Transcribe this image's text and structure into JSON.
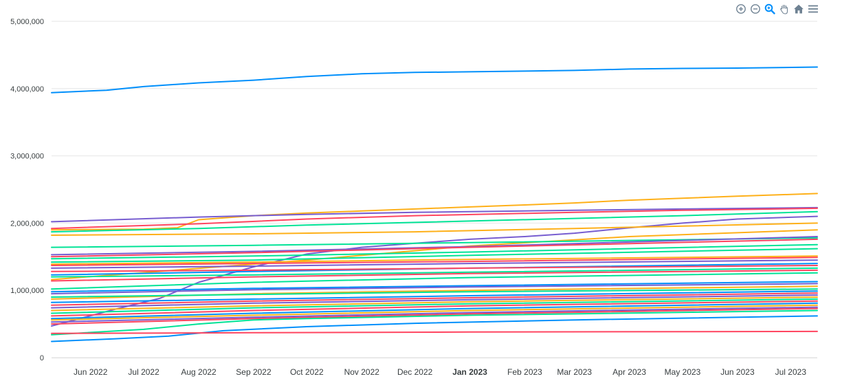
{
  "toolbar": {
    "icons": [
      "zoom-in-icon",
      "zoom-out-icon",
      "selection-zoom-icon",
      "pan-icon",
      "home-icon",
      "menu-icon"
    ]
  },
  "chart_data": {
    "type": "line",
    "title": "",
    "xlabel": "",
    "ylabel": "",
    "ylim": [
      0,
      5000000
    ],
    "xlim": [
      "2022-05-10",
      "2023-07-16"
    ],
    "grid": true,
    "legend": "none",
    "y_ticks": [
      "0",
      "1,000,000",
      "2,000,000",
      "3,000,000",
      "4,000,000",
      "5,000,000"
    ],
    "y_tick_values": [
      0,
      1000000,
      2000000,
      3000000,
      4000000,
      5000000
    ],
    "x_ticks": [
      {
        "label": "Jun 2022",
        "date": "2022-06-01"
      },
      {
        "label": "Jul 2022",
        "date": "2022-07-01"
      },
      {
        "label": "Aug 2022",
        "date": "2022-08-01"
      },
      {
        "label": "Sep 2022",
        "date": "2022-09-01"
      },
      {
        "label": "Oct 2022",
        "date": "2022-10-01"
      },
      {
        "label": "Nov 2022",
        "date": "2022-11-01"
      },
      {
        "label": "Dec 2022",
        "date": "2022-12-01"
      },
      {
        "label": "Jan 2023",
        "date": "2023-01-01",
        "bold": true
      },
      {
        "label": "Feb 2023",
        "date": "2023-02-01"
      },
      {
        "label": "Mar 2023",
        "date": "2023-03-01"
      },
      {
        "label": "Apr 2023",
        "date": "2023-04-01"
      },
      {
        "label": "May 2023",
        "date": "2023-05-01"
      },
      {
        "label": "Jun 2023",
        "date": "2023-06-01"
      },
      {
        "label": "Jul 2023",
        "date": "2023-07-01"
      }
    ],
    "colors": [
      "#008FFB",
      "#00E396",
      "#FEB019",
      "#FF4560",
      "#775DD0"
    ],
    "series": [
      {
        "color": "#008FFB",
        "points": [
          [
            "2022-05-10",
            3940000
          ],
          [
            "2022-06-10",
            3975000
          ],
          [
            "2022-07-01",
            4030000
          ],
          [
            "2022-08-01",
            4085000
          ],
          [
            "2022-09-01",
            4125000
          ],
          [
            "2022-10-01",
            4180000
          ],
          [
            "2022-11-01",
            4220000
          ],
          [
            "2022-12-01",
            4240000
          ],
          [
            "2023-01-01",
            4250000
          ],
          [
            "2023-02-01",
            4260000
          ],
          [
            "2023-03-01",
            4270000
          ],
          [
            "2023-04-01",
            4290000
          ],
          [
            "2023-05-01",
            4300000
          ],
          [
            "2023-06-01",
            4305000
          ],
          [
            "2023-07-16",
            4320000
          ]
        ]
      },
      {
        "color": "#FEB019",
        "points": [
          [
            "2022-05-10",
            1900000
          ],
          [
            "2022-07-01",
            1910000
          ],
          [
            "2022-07-20",
            1930000
          ],
          [
            "2022-08-01",
            2050000
          ],
          [
            "2022-09-01",
            2110000
          ],
          [
            "2022-10-01",
            2150000
          ],
          [
            "2022-11-01",
            2180000
          ],
          [
            "2022-12-01",
            2210000
          ],
          [
            "2023-01-01",
            2240000
          ],
          [
            "2023-02-01",
            2270000
          ],
          [
            "2023-03-01",
            2300000
          ],
          [
            "2023-04-01",
            2340000
          ],
          [
            "2023-05-01",
            2370000
          ],
          [
            "2023-06-01",
            2400000
          ],
          [
            "2023-07-16",
            2440000
          ]
        ]
      },
      {
        "color": "#775DD0",
        "points": [
          [
            "2022-05-10",
            2020000
          ],
          [
            "2022-08-01",
            2090000
          ],
          [
            "2022-10-01",
            2130000
          ],
          [
            "2022-12-01",
            2160000
          ],
          [
            "2023-03-01",
            2190000
          ],
          [
            "2023-05-01",
            2210000
          ],
          [
            "2023-07-16",
            2230000
          ]
        ]
      },
      {
        "color": "#FF4560",
        "points": [
          [
            "2022-05-10",
            1920000
          ],
          [
            "2022-08-01",
            1990000
          ],
          [
            "2022-10-01",
            2060000
          ],
          [
            "2022-12-01",
            2110000
          ],
          [
            "2023-03-01",
            2160000
          ],
          [
            "2023-05-01",
            2190000
          ],
          [
            "2023-07-16",
            2220000
          ]
        ]
      },
      {
        "color": "#00E396",
        "points": [
          [
            "2022-05-10",
            1870000
          ],
          [
            "2022-08-01",
            1920000
          ],
          [
            "2022-10-01",
            1970000
          ],
          [
            "2022-12-01",
            2010000
          ],
          [
            "2023-03-01",
            2070000
          ],
          [
            "2023-05-01",
            2110000
          ],
          [
            "2023-07-16",
            2170000
          ]
        ]
      },
      {
        "color": "#775DD0",
        "points": [
          [
            "2022-05-10",
            470000
          ],
          [
            "2022-06-15",
            720000
          ],
          [
            "2022-07-10",
            880000
          ],
          [
            "2022-08-01",
            1120000
          ],
          [
            "2022-09-01",
            1350000
          ],
          [
            "2022-10-01",
            1540000
          ],
          [
            "2022-11-01",
            1640000
          ],
          [
            "2022-12-01",
            1700000
          ],
          [
            "2023-01-01",
            1760000
          ],
          [
            "2023-02-01",
            1800000
          ],
          [
            "2023-03-01",
            1850000
          ],
          [
            "2023-04-01",
            1930000
          ],
          [
            "2023-05-01",
            2000000
          ],
          [
            "2023-06-01",
            2060000
          ],
          [
            "2023-07-16",
            2100000
          ]
        ]
      },
      {
        "color": "#FEB019",
        "points": [
          [
            "2022-05-10",
            1820000
          ],
          [
            "2022-09-01",
            1840000
          ],
          [
            "2022-12-01",
            1870000
          ],
          [
            "2023-03-01",
            1920000
          ],
          [
            "2023-07-16",
            2000000
          ]
        ]
      },
      {
        "color": "#FEB019",
        "points": [
          [
            "2022-05-10",
            1160000
          ],
          [
            "2022-10-01",
            1450000
          ],
          [
            "2023-01-01",
            1660000
          ],
          [
            "2023-04-01",
            1800000
          ],
          [
            "2023-07-16",
            1900000
          ]
        ]
      },
      {
        "color": "#00E396",
        "points": [
          [
            "2022-05-10",
            1640000
          ],
          [
            "2022-09-01",
            1670000
          ],
          [
            "2023-01-01",
            1710000
          ],
          [
            "2023-07-16",
            1780000
          ]
        ]
      },
      {
        "color": "#775DD0",
        "points": [
          [
            "2022-05-10",
            1530000
          ],
          [
            "2022-09-01",
            1580000
          ],
          [
            "2023-01-01",
            1650000
          ],
          [
            "2023-07-16",
            1800000
          ]
        ]
      },
      {
        "color": "#FF4560",
        "points": [
          [
            "2022-05-10",
            1500000
          ],
          [
            "2022-09-01",
            1560000
          ],
          [
            "2023-01-01",
            1640000
          ],
          [
            "2023-07-16",
            1760000
          ]
        ]
      },
      {
        "color": "#00E396",
        "points": [
          [
            "2022-05-10",
            1470000
          ],
          [
            "2022-09-01",
            1510000
          ],
          [
            "2023-01-01",
            1570000
          ],
          [
            "2023-07-16",
            1680000
          ]
        ]
      },
      {
        "color": "#00E396",
        "points": [
          [
            "2022-05-10",
            1420000
          ],
          [
            "2022-09-01",
            1450000
          ],
          [
            "2023-01-01",
            1520000
          ],
          [
            "2023-07-16",
            1620000
          ]
        ]
      },
      {
        "color": "#FEB019",
        "points": [
          [
            "2022-05-10",
            1390000
          ],
          [
            "2022-09-01",
            1420000
          ],
          [
            "2023-01-01",
            1460000
          ],
          [
            "2023-07-16",
            1510000
          ]
        ]
      },
      {
        "color": "#FF4560",
        "points": [
          [
            "2022-05-10",
            1370000
          ],
          [
            "2022-09-01",
            1400000
          ],
          [
            "2023-01-01",
            1430000
          ],
          [
            "2023-07-16",
            1490000
          ]
        ]
      },
      {
        "color": "#775DD0",
        "points": [
          [
            "2022-05-10",
            1330000
          ],
          [
            "2022-09-01",
            1360000
          ],
          [
            "2023-01-01",
            1400000
          ],
          [
            "2023-07-16",
            1450000
          ]
        ]
      },
      {
        "color": "#008FFB",
        "points": [
          [
            "2022-05-10",
            1230000
          ],
          [
            "2022-09-01",
            1280000
          ],
          [
            "2023-01-01",
            1330000
          ],
          [
            "2023-07-16",
            1400000
          ]
        ]
      },
      {
        "color": "#FF4560",
        "points": [
          [
            "2022-05-10",
            1280000
          ],
          [
            "2022-09-01",
            1300000
          ],
          [
            "2023-01-01",
            1330000
          ],
          [
            "2023-07-16",
            1370000
          ]
        ]
      },
      {
        "color": "#00E396",
        "points": [
          [
            "2022-05-10",
            1200000
          ],
          [
            "2022-09-01",
            1230000
          ],
          [
            "2023-01-01",
            1270000
          ],
          [
            "2023-07-16",
            1330000
          ]
        ]
      },
      {
        "color": "#FF4560",
        "points": [
          [
            "2022-05-10",
            1140000
          ],
          [
            "2022-09-01",
            1200000
          ],
          [
            "2023-01-01",
            1250000
          ],
          [
            "2023-07-16",
            1300000
          ]
        ]
      },
      {
        "color": "#00E396",
        "points": [
          [
            "2022-05-10",
            1020000
          ],
          [
            "2022-09-01",
            1120000
          ],
          [
            "2023-01-01",
            1190000
          ],
          [
            "2023-07-16",
            1260000
          ]
        ]
      },
      {
        "color": "#008FFB",
        "points": [
          [
            "2022-05-10",
            980000
          ],
          [
            "2022-09-01",
            1030000
          ],
          [
            "2023-01-01",
            1070000
          ],
          [
            "2023-07-16",
            1130000
          ]
        ]
      },
      {
        "color": "#775DD0",
        "points": [
          [
            "2022-05-10",
            950000
          ],
          [
            "2022-09-01",
            1010000
          ],
          [
            "2023-01-01",
            1050000
          ],
          [
            "2023-07-16",
            1100000
          ]
        ]
      },
      {
        "color": "#FEB019",
        "points": [
          [
            "2022-05-10",
            870000
          ],
          [
            "2022-09-01",
            950000
          ],
          [
            "2023-01-01",
            1000000
          ],
          [
            "2023-07-16",
            1060000
          ]
        ]
      },
      {
        "color": "#00E396",
        "points": [
          [
            "2022-05-10",
            900000
          ],
          [
            "2022-09-01",
            940000
          ],
          [
            "2023-01-01",
            980000
          ],
          [
            "2023-07-16",
            1020000
          ]
        ]
      },
      {
        "color": "#008FFB",
        "points": [
          [
            "2022-05-10",
            820000
          ],
          [
            "2022-09-01",
            870000
          ],
          [
            "2023-01-01",
            920000
          ],
          [
            "2023-07-16",
            990000
          ]
        ]
      },
      {
        "color": "#FF4560",
        "points": [
          [
            "2022-05-10",
            780000
          ],
          [
            "2022-09-01",
            840000
          ],
          [
            "2023-01-01",
            890000
          ],
          [
            "2023-07-16",
            960000
          ]
        ]
      },
      {
        "color": "#775DD0",
        "points": [
          [
            "2022-05-10",
            740000
          ],
          [
            "2022-09-01",
            810000
          ],
          [
            "2023-01-01",
            860000
          ],
          [
            "2023-07-16",
            930000
          ]
        ]
      },
      {
        "color": "#FEB019",
        "points": [
          [
            "2022-05-10",
            700000
          ],
          [
            "2022-09-01",
            770000
          ],
          [
            "2023-01-01",
            830000
          ],
          [
            "2023-07-16",
            900000
          ]
        ]
      },
      {
        "color": "#00E396",
        "points": [
          [
            "2022-05-10",
            660000
          ],
          [
            "2022-09-01",
            740000
          ],
          [
            "2023-01-01",
            800000
          ],
          [
            "2023-07-16",
            870000
          ]
        ]
      },
      {
        "color": "#FF4560",
        "points": [
          [
            "2022-05-10",
            620000
          ],
          [
            "2022-09-01",
            700000
          ],
          [
            "2023-01-01",
            770000
          ],
          [
            "2023-07-16",
            840000
          ]
        ]
      },
      {
        "color": "#008FFB",
        "points": [
          [
            "2022-05-10",
            580000
          ],
          [
            "2022-09-01",
            660000
          ],
          [
            "2023-01-01",
            730000
          ],
          [
            "2023-07-16",
            810000
          ]
        ]
      },
      {
        "color": "#FEB019",
        "points": [
          [
            "2022-05-10",
            560000
          ],
          [
            "2022-09-01",
            630000
          ],
          [
            "2023-01-01",
            700000
          ],
          [
            "2023-07-16",
            780000
          ]
        ]
      },
      {
        "color": "#775DD0",
        "points": [
          [
            "2022-05-10",
            530000
          ],
          [
            "2022-09-01",
            600000
          ],
          [
            "2023-01-01",
            670000
          ],
          [
            "2023-07-16",
            750000
          ]
        ]
      },
      {
        "color": "#FF4560",
        "points": [
          [
            "2022-05-10",
            500000
          ],
          [
            "2022-09-01",
            580000
          ],
          [
            "2023-01-01",
            650000
          ],
          [
            "2023-07-16",
            730000
          ]
        ]
      },
      {
        "color": "#00E396",
        "points": [
          [
            "2022-05-10",
            340000
          ],
          [
            "2022-07-01",
            420000
          ],
          [
            "2022-08-01",
            500000
          ],
          [
            "2022-09-01",
            560000
          ],
          [
            "2022-10-01",
            580000
          ],
          [
            "2023-01-01",
            630000
          ],
          [
            "2023-07-16",
            700000
          ]
        ]
      },
      {
        "color": "#008FFB",
        "points": [
          [
            "2022-05-10",
            240000
          ],
          [
            "2022-06-15",
            280000
          ],
          [
            "2022-07-15",
            320000
          ],
          [
            "2022-08-15",
            400000
          ],
          [
            "2022-10-01",
            460000
          ],
          [
            "2022-12-01",
            510000
          ],
          [
            "2023-03-01",
            560000
          ],
          [
            "2023-07-16",
            620000
          ]
        ]
      },
      {
        "color": "#FF4560",
        "points": [
          [
            "2022-05-10",
            360000
          ],
          [
            "2022-09-01",
            370000
          ],
          [
            "2023-01-01",
            380000
          ],
          [
            "2023-07-16",
            390000
          ]
        ]
      }
    ]
  }
}
